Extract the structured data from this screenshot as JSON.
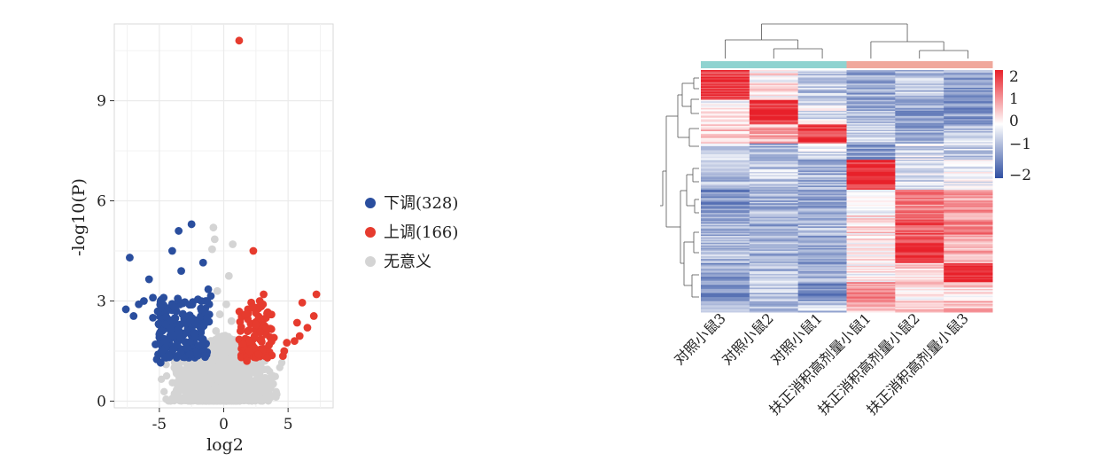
{
  "chart_data": [
    {
      "type": "scatter",
      "xlabel": "log2",
      "ylabel": "-log10(P)",
      "xlim": [
        -8.5,
        8.5
      ],
      "ylim": [
        -0.2,
        11.3
      ],
      "x_ticks": [
        -5,
        0,
        5
      ],
      "y_ticks": [
        0,
        3,
        6,
        9
      ],
      "grid": true,
      "legend_position": "right",
      "colors": {
        "down": "#2a4e9e",
        "up": "#e63b2e",
        "ns": "#d4d4d4"
      },
      "series": [
        {
          "name": "下调(328)",
          "key": "down",
          "points": [
            [
              -7.3,
              4.3
            ],
            [
              -6.2,
              3.0
            ],
            [
              -5.8,
              3.65
            ],
            [
              -7.6,
              2.75
            ],
            [
              -7.0,
              2.55
            ],
            [
              -6.6,
              2.9
            ],
            [
              -5.5,
              3.1
            ],
            [
              -3.5,
              5.1
            ],
            [
              -2.5,
              5.3
            ],
            [
              -4.0,
              4.5
            ],
            [
              -3.3,
              3.9
            ],
            [
              -1.6,
              4.15
            ],
            [
              -1.2,
              3.35
            ],
            [
              -1.4,
              3.0
            ],
            [
              -2.0,
              3.05
            ],
            [
              -1.0,
              3.15
            ],
            [
              -4.5,
              2.3
            ],
            [
              -5.0,
              2.0
            ],
            [
              -5.3,
              1.7
            ],
            [
              -4.8,
              1.5
            ],
            [
              -5.5,
              2.5
            ],
            [
              -5.2,
              1.25
            ],
            [
              -4.9,
              1.15
            ],
            [
              -3.8,
              2.8
            ],
            [
              -3.2,
              2.6
            ],
            [
              -2.6,
              2.4
            ],
            [
              -2.2,
              1.9
            ],
            [
              -1.7,
              2.2
            ],
            [
              -1.3,
              2.5
            ],
            [
              -2.9,
              1.6
            ]
          ]
        },
        {
          "name": "上调(166)",
          "key": "up",
          "points": [
            [
              1.2,
              10.8
            ],
            [
              2.3,
              4.5
            ],
            [
              7.2,
              3.2
            ],
            [
              6.1,
              2.95
            ],
            [
              7.0,
              2.55
            ],
            [
              6.5,
              2.2
            ],
            [
              5.7,
              2.35
            ],
            [
              5.9,
              1.95
            ],
            [
              5.5,
              1.8
            ],
            [
              4.9,
              1.75
            ],
            [
              4.7,
              1.5
            ],
            [
              4.6,
              1.35
            ],
            [
              3.1,
              3.2
            ],
            [
              2.8,
              3.0
            ],
            [
              2.2,
              2.8
            ],
            [
              1.7,
              2.6
            ],
            [
              2.5,
              2.3
            ],
            [
              3.3,
              2.2
            ],
            [
              3.9,
              1.9
            ],
            [
              1.5,
              1.7
            ],
            [
              2.0,
              1.5
            ],
            [
              2.7,
              1.4
            ],
            [
              3.4,
              1.3
            ],
            [
              1.8,
              1.2
            ],
            [
              1.3,
              2.1
            ],
            [
              2.9,
              1.85
            ],
            [
              3.6,
              2.6
            ],
            [
              2.4,
              1.95
            ]
          ]
        },
        {
          "name": "无意义",
          "key": "ns",
          "points": [
            [
              -0.8,
              5.2
            ],
            [
              -0.7,
              4.85
            ],
            [
              -0.9,
              4.55
            ],
            [
              0.7,
              4.7
            ],
            [
              0.4,
              3.75
            ],
            [
              -0.5,
              3.3
            ],
            [
              0.2,
              2.9
            ],
            [
              -0.3,
              2.6
            ],
            [
              0.6,
              2.4
            ],
            [
              -0.6,
              2.1
            ]
          ]
        }
      ]
    },
    {
      "type": "heatmap",
      "columns": [
        "对照小鼠3",
        "对照小鼠2",
        "对照小鼠1",
        "扶正消积高剂量小鼠1",
        "扶正消积高剂量小鼠2",
        "扶正消积高剂量小鼠3"
      ],
      "column_groups": [
        "#8fd3d0",
        "#8fd3d0",
        "#8fd3d0",
        "#f0a89c",
        "#f0a89c",
        "#f0a89c"
      ],
      "colorbar": {
        "ticks": [
          2,
          1,
          0,
          -1,
          -2
        ],
        "tick_labels": [
          "2",
          "1",
          "0",
          "−1",
          "−2"
        ],
        "min": -2,
        "max": 2
      },
      "colors": {
        "high": "#e8212a",
        "mid": "#ffffff",
        "low": "#2f4fa2"
      },
      "blocks": [
        {
          "rows": 22,
          "values": [
            1.8,
            0.2,
            -0.6,
            -0.9,
            -0.7,
            -1.0
          ]
        },
        {
          "rows": 18,
          "values": [
            0.0,
            1.9,
            -0.3,
            -0.8,
            -1.0,
            -1.1
          ]
        },
        {
          "rows": 14,
          "values": [
            0.4,
            0.7,
            1.8,
            -0.6,
            -0.9,
            -0.6
          ]
        },
        {
          "rows": 12,
          "values": [
            -0.4,
            -0.9,
            -0.3,
            -1.1,
            -0.4,
            -0.5
          ]
        },
        {
          "rows": 22,
          "values": [
            -0.8,
            -0.6,
            -0.9,
            1.9,
            -0.4,
            -0.2
          ]
        },
        {
          "rows": 18,
          "values": [
            -1.1,
            -0.9,
            -1.0,
            -0.1,
            1.1,
            0.8
          ]
        },
        {
          "rows": 16,
          "values": [
            -0.9,
            -1.0,
            -0.8,
            0.3,
            1.5,
            1.0
          ]
        },
        {
          "rows": 20,
          "values": [
            -0.7,
            -0.8,
            -1.1,
            0.2,
            1.8,
            0.6
          ]
        },
        {
          "rows": 14,
          "values": [
            -1.0,
            -0.7,
            -0.9,
            0.1,
            0.4,
            1.9
          ]
        },
        {
          "rows": 14,
          "values": [
            -1.2,
            -0.6,
            -1.3,
            1.0,
            0.3,
            0.3
          ]
        },
        {
          "rows": 8,
          "values": [
            -0.9,
            -0.8,
            -0.6,
            0.7,
            0.5,
            0.6
          ]
        }
      ]
    }
  ]
}
